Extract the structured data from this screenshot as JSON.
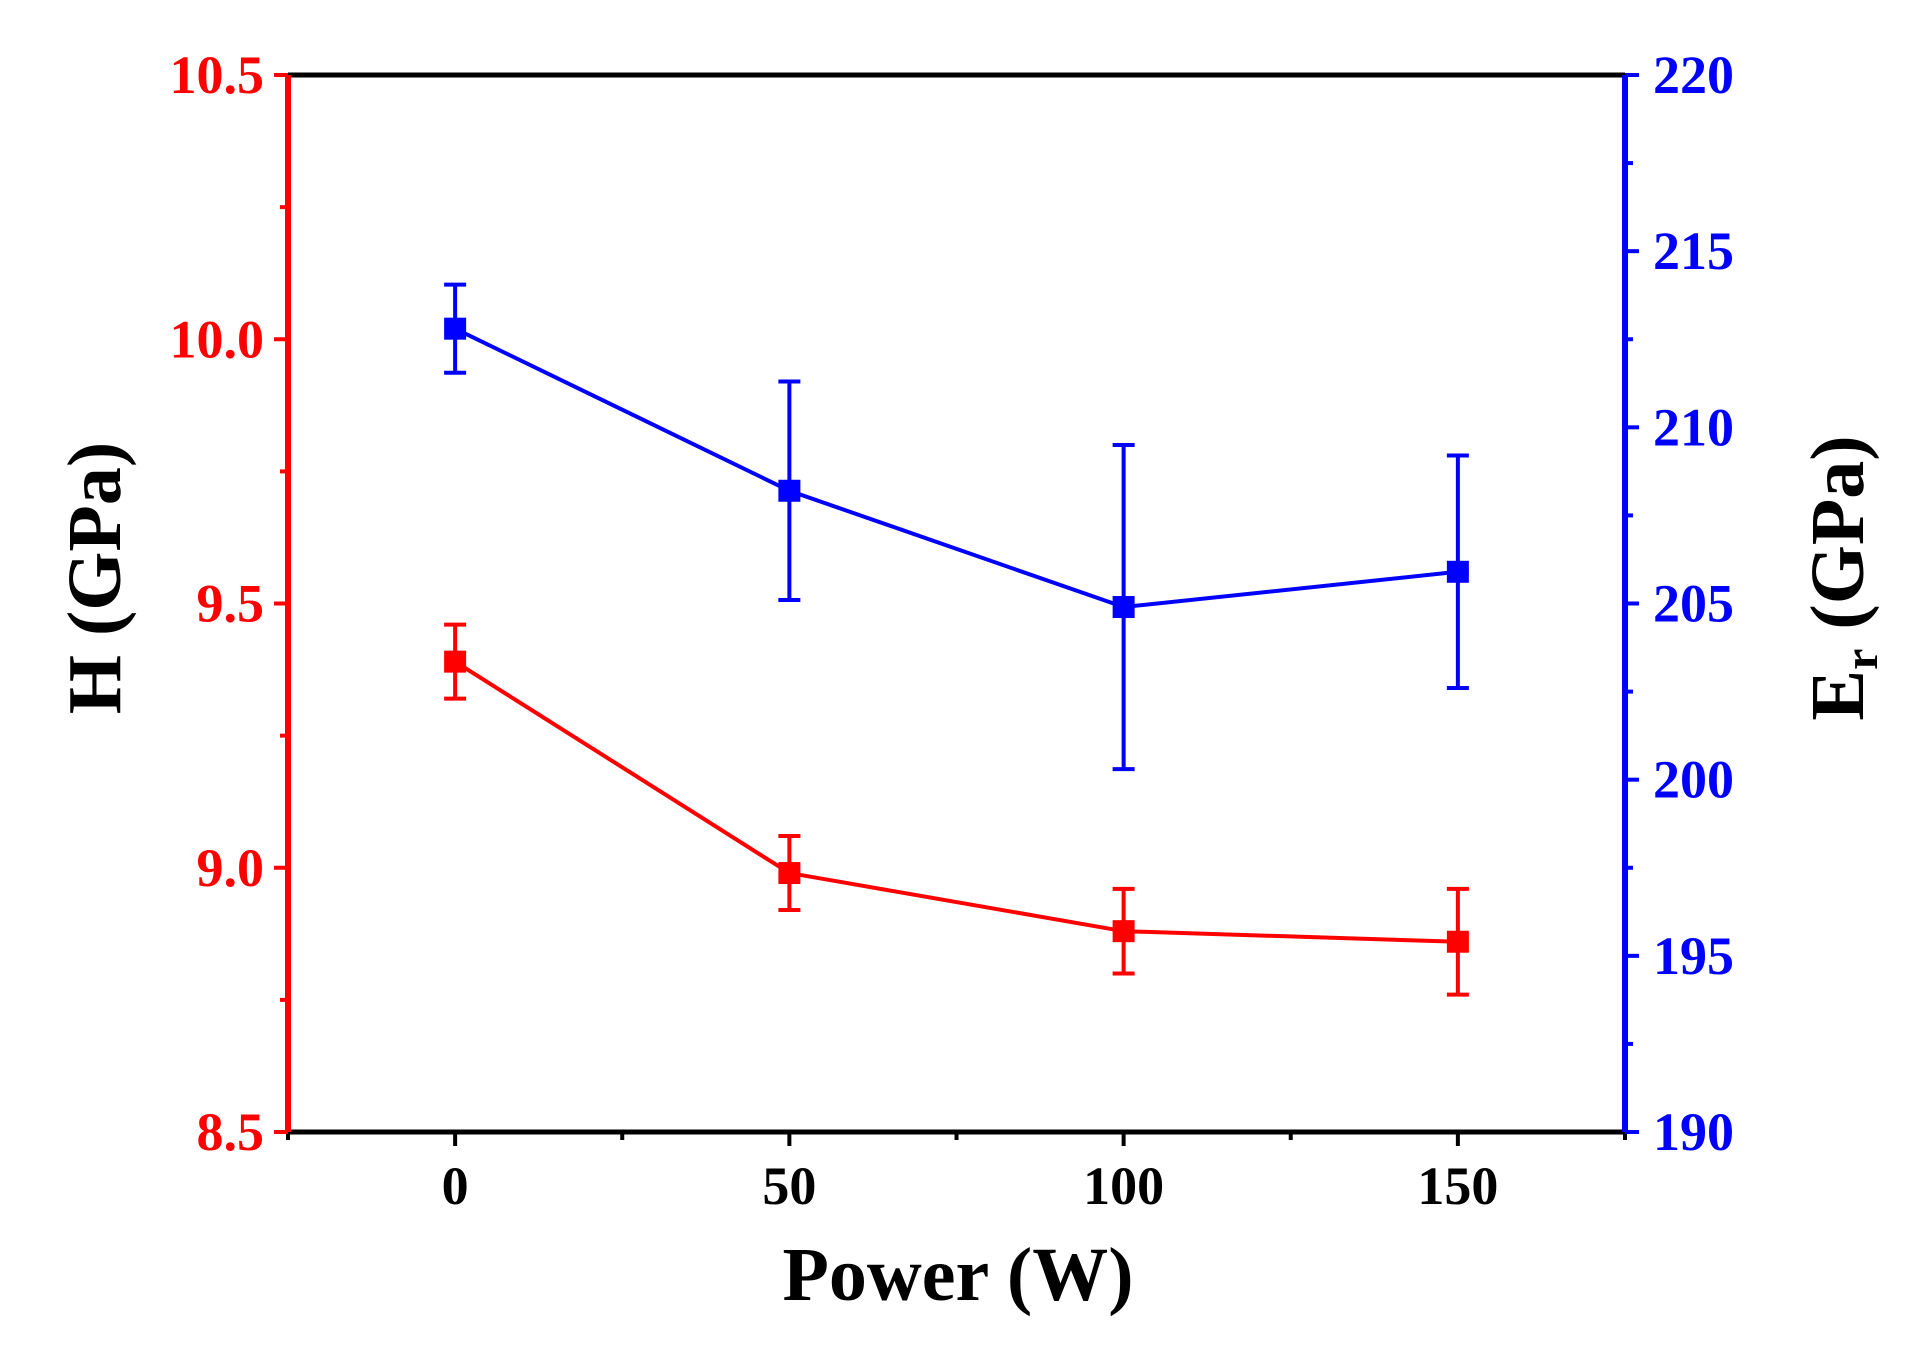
{
  "chart_data": {
    "type": "line",
    "title": "",
    "x": [
      0,
      50,
      100,
      150
    ],
    "xlabel": "Power (W)",
    "xlim": [
      -25,
      175
    ],
    "xticks": [
      0,
      50,
      100,
      150
    ],
    "grid": false,
    "legend": "none",
    "axes": {
      "left": {
        "label": "H (GPa)",
        "color": "#ff0000",
        "ylim": [
          8.5,
          10.5
        ],
        "ticks": [
          8.5,
          9.0,
          9.5,
          10.0,
          10.5
        ],
        "tick_labels": [
          "8.5",
          "9.0",
          "9.5",
          "10.0",
          "10.5"
        ]
      },
      "right": {
        "label_main": "E",
        "label_sub": "r",
        "label_rest": " (GPa)",
        "color": "#0000ff",
        "ylim": [
          190,
          220
        ],
        "ticks": [
          190,
          195,
          200,
          205,
          210,
          215,
          220
        ],
        "tick_labels": [
          "190",
          "195",
          "200",
          "205",
          "210",
          "215",
          "220"
        ]
      }
    },
    "series": [
      {
        "name": "H",
        "axis": "left",
        "color": "#ff0000",
        "marker": "square",
        "values": [
          9.39,
          8.99,
          8.88,
          8.86
        ],
        "errors": [
          0.07,
          0.07,
          0.08,
          0.1
        ]
      },
      {
        "name": "Er",
        "axis": "right",
        "color": "#0000ff",
        "marker": "square",
        "values": [
          212.8,
          208.2,
          204.9,
          205.9
        ],
        "errors": [
          1.25,
          3.1,
          4.6,
          3.3
        ]
      }
    ]
  }
}
